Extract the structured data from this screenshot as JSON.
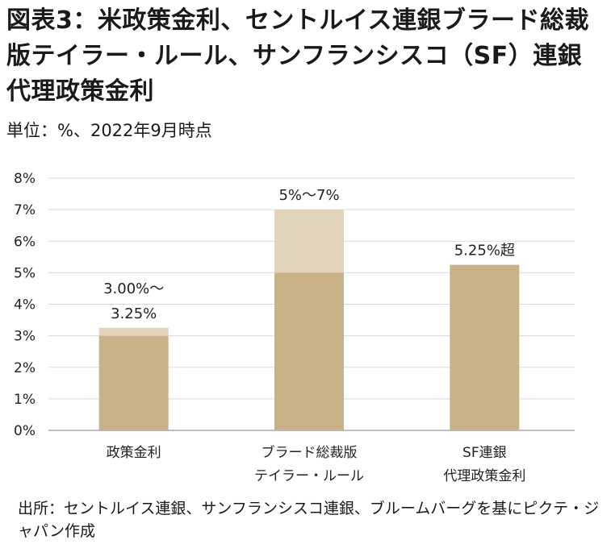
{
  "title": "図表3：米政策金利、セントルイス連銀ブラード総裁版テイラー・ルール、サンフランシスコ（SF）連銀代理政策金利",
  "subtitle": "単位：%、2022年9月時点",
  "source": "出所：セントルイス連銀、サンフランシスコ連銀、ブルームバーグを基にピクテ・ジャパン作成",
  "colors": {
    "bar": "#c9b287",
    "range": "#e2d4ba",
    "grid": "#d9d9d9",
    "axis": "#7f7f7f",
    "text": "#222222"
  },
  "chart_data": {
    "type": "bar",
    "ylim": [
      0,
      8
    ],
    "yticks": [
      "0%",
      "1%",
      "2%",
      "3%",
      "4%",
      "5%",
      "6%",
      "7%",
      "8%"
    ],
    "grid": true,
    "categories": [
      [
        "政策金利"
      ],
      [
        "ブラード総裁版",
        "テイラー・ルール"
      ],
      [
        "SF連銀",
        "代理政策金利"
      ]
    ],
    "base_values": [
      3.0,
      5.0,
      5.25
    ],
    "range_top": [
      3.25,
      7.0,
      5.25
    ],
    "data_labels": [
      [
        "3.00%～",
        "3.25%"
      ],
      [
        "5%～7%"
      ],
      [
        "5.25%超"
      ]
    ]
  }
}
